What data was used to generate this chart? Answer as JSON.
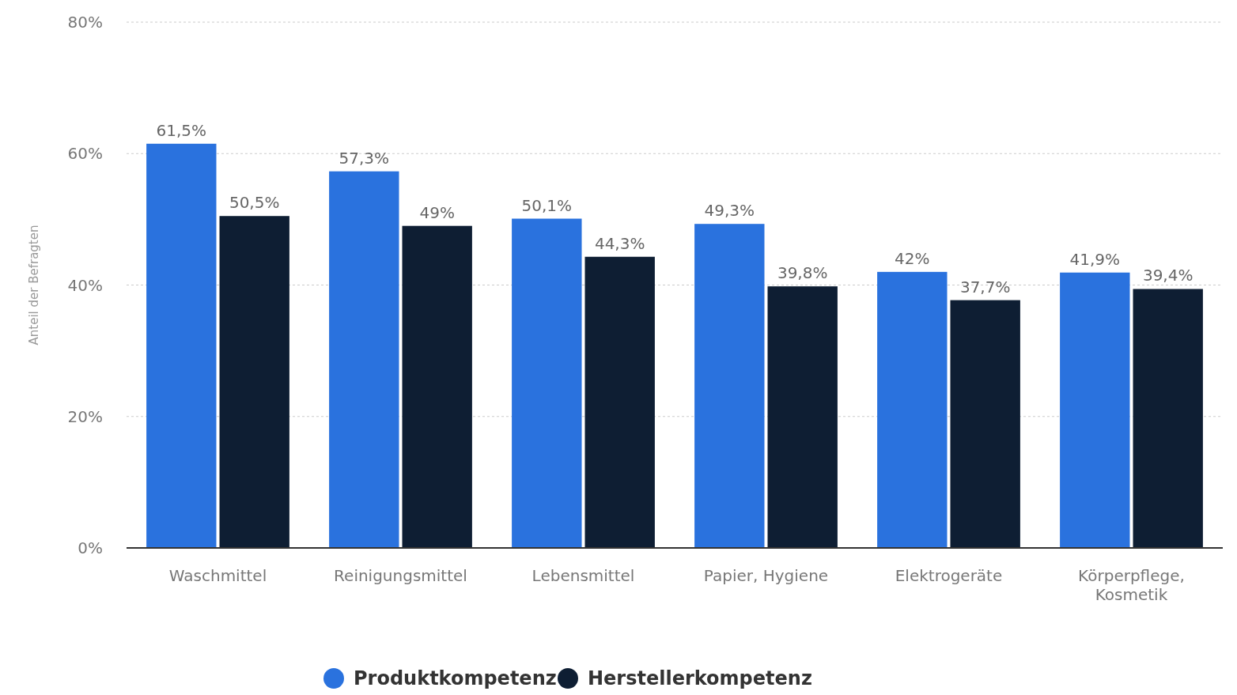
{
  "chart_data": {
    "type": "bar",
    "ylabel": "Anteil der Befragten",
    "categories": [
      "Waschmittel",
      "Reinigungsmittel",
      "Lebensmittel",
      "Papier, Hygiene",
      "Elektrogeräte",
      "Körperpflege, Kosmetik"
    ],
    "series": [
      {
        "name": "Produktkompetenz",
        "color": "#2a72de",
        "values": [
          61.5,
          57.3,
          50.1,
          49.3,
          42,
          41.9
        ],
        "value_labels": [
          "61,5%",
          "57,3%",
          "50,1%",
          "49,3%",
          "42%",
          "41,9%"
        ]
      },
      {
        "name": "Herstellerkompetenz",
        "color": "#0e1e33",
        "values": [
          50.5,
          49,
          44.3,
          39.8,
          37.7,
          39.4
        ],
        "value_labels": [
          "50,5%",
          "49%",
          "44,3%",
          "39,8%",
          "37,7%",
          "39,4%"
        ]
      }
    ],
    "ylim": [
      0,
      80
    ],
    "yticks": [
      {
        "value": 0,
        "label": "0%"
      },
      {
        "value": 20,
        "label": "20%"
      },
      {
        "value": 40,
        "label": "40%"
      },
      {
        "value": 60,
        "label": "60%"
      },
      {
        "value": 80,
        "label": "80%"
      }
    ],
    "grid": "y",
    "legend": "bottom"
  }
}
